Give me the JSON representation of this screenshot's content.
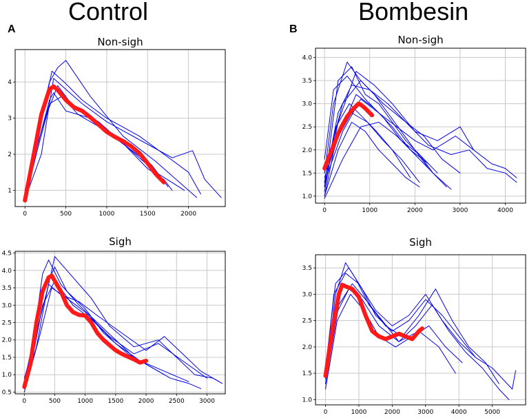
{
  "figure": {
    "left_group_title": "Control",
    "right_group_title": "Bombesin",
    "left_letter": "A",
    "right_letter": "B"
  },
  "colors": {
    "traces": "#0000ee",
    "mean": "#ff1a1a",
    "grid": "#c8c8c8"
  },
  "chart_data": [
    {
      "id": "control-nonsigh",
      "type": "line",
      "title": "Non-sigh",
      "xlim": [
        -120,
        2450
      ],
      "ylim": [
        0.55,
        4.9
      ],
      "xticks": [
        0,
        500,
        1000,
        1500,
        2000
      ],
      "yticks": [
        1,
        2,
        3,
        4
      ],
      "series": [
        {
          "name": "mean",
          "x": [
            0,
            100,
            200,
            300,
            350,
            400,
            500,
            600,
            700,
            800,
            900,
            1000,
            1100,
            1200,
            1300,
            1400,
            1500,
            1600,
            1700
          ],
          "y": [
            0.72,
            1.9,
            3.1,
            3.8,
            3.88,
            3.78,
            3.5,
            3.3,
            3.2,
            3.02,
            2.82,
            2.62,
            2.48,
            2.36,
            2.22,
            2.03,
            1.75,
            1.45,
            1.22
          ]
        },
        {
          "name": "trace-1",
          "x": [
            0,
            150,
            300,
            400,
            500,
            800,
            1200,
            1600,
            1900,
            2100
          ],
          "y": [
            0.9,
            2.6,
            4.0,
            4.4,
            4.6,
            3.6,
            2.5,
            1.8,
            1.2,
            0.8
          ]
        },
        {
          "name": "trace-2",
          "x": [
            0,
            150,
            300,
            350,
            500,
            800,
            1200,
            1500,
            1700,
            1800
          ],
          "y": [
            0.8,
            2.2,
            3.5,
            3.7,
            3.2,
            3.0,
            2.3,
            1.6,
            1.3,
            1.0
          ]
        },
        {
          "name": "trace-3",
          "x": [
            0,
            200,
            350,
            500,
            700,
            1000,
            1400,
            1800,
            2050,
            2200,
            2400
          ],
          "y": [
            0.75,
            2.0,
            4.1,
            3.8,
            3.4,
            2.9,
            2.4,
            1.9,
            2.1,
            1.3,
            0.8
          ]
        },
        {
          "name": "trace-4",
          "x": [
            0,
            150,
            280,
            400,
            600,
            900,
            1300,
            1600,
            1950
          ],
          "y": [
            0.7,
            2.1,
            3.2,
            3.9,
            3.3,
            2.9,
            2.1,
            1.5,
            1.0
          ]
        },
        {
          "name": "trace-5",
          "x": [
            0,
            180,
            330,
            480,
            700,
            1000,
            1400,
            1700,
            2000,
            2150
          ],
          "y": [
            0.9,
            2.7,
            4.3,
            4.0,
            3.5,
            3.0,
            2.5,
            2.0,
            1.5,
            0.9
          ]
        },
        {
          "name": "trace-6",
          "x": [
            0,
            120,
            300,
            450,
            650,
            950,
            1250,
            1550,
            1750
          ],
          "y": [
            1.0,
            2.0,
            3.4,
            3.6,
            3.1,
            2.7,
            2.2,
            1.7,
            1.1
          ]
        }
      ]
    },
    {
      "id": "bombesin-nonsigh",
      "type": "line",
      "title": "Non-sigh",
      "xlim": [
        -200,
        4450
      ],
      "ylim": [
        0.85,
        4.2
      ],
      "xticks": [
        0,
        1000,
        2000,
        3000,
        4000
      ],
      "yticks": [
        1.0,
        1.5,
        2.0,
        2.5,
        3.0,
        3.5,
        4.0
      ],
      "series": [
        {
          "name": "mean",
          "x": [
            0,
            100,
            200,
            300,
            400,
            500,
            600,
            700,
            750,
            800,
            900,
            1000,
            1050
          ],
          "y": [
            1.6,
            1.85,
            2.1,
            2.35,
            2.55,
            2.72,
            2.85,
            2.95,
            3.0,
            2.98,
            2.9,
            2.8,
            2.75
          ]
        },
        {
          "name": "trace-1",
          "x": [
            0,
            300,
            600,
            900,
            1200,
            1500,
            1800,
            2100,
            2400,
            2700
          ],
          "y": [
            1.2,
            3.5,
            3.8,
            3.2,
            3.0,
            2.6,
            2.2,
            1.9,
            1.5,
            1.2
          ]
        },
        {
          "name": "trace-2",
          "x": [
            0,
            300,
            600,
            900,
            1200,
            1500,
            1800,
            2100
          ],
          "y": [
            1.0,
            2.0,
            2.6,
            2.4,
            2.0,
            1.7,
            1.4,
            1.2
          ]
        },
        {
          "name": "trace-3",
          "x": [
            0,
            200,
            500,
            800,
            1100,
            1400,
            1700,
            2000,
            2300
          ],
          "y": [
            1.5,
            3.0,
            3.9,
            3.5,
            3.2,
            2.8,
            2.4,
            2.0,
            1.6
          ]
        },
        {
          "name": "trace-4",
          "x": [
            0,
            250,
            550,
            850,
            1150,
            1500,
            1900
          ],
          "y": [
            1.1,
            2.5,
            3.0,
            2.7,
            2.4,
            2.0,
            1.4
          ]
        },
        {
          "name": "trace-5",
          "x": [
            0,
            300,
            600,
            1000,
            1400,
            1800,
            2200,
            2600,
            3000
          ],
          "y": [
            1.3,
            2.8,
            3.4,
            3.3,
            3.0,
            2.6,
            2.3,
            1.8,
            1.5
          ]
        },
        {
          "name": "trace-6",
          "x": [
            0,
            400,
            800,
            1200,
            1600,
            2000,
            2400,
            2800
          ],
          "y": [
            0.95,
            1.8,
            2.5,
            2.6,
            2.3,
            1.9,
            1.5,
            1.15
          ]
        },
        {
          "name": "trace-7",
          "x": [
            0,
            200,
            500,
            900,
            1300,
            1700,
            2100,
            2500
          ],
          "y": [
            1.8,
            3.3,
            3.6,
            3.1,
            2.7,
            2.2,
            1.9,
            1.5
          ]
        },
        {
          "name": "trace-8",
          "x": [
            0,
            350,
            700,
            1100,
            1500,
            1900,
            2300
          ],
          "y": [
            1.4,
            2.4,
            3.2,
            2.9,
            2.5,
            2.0,
            1.7
          ]
        },
        {
          "name": "trace-9",
          "x": [
            0,
            300,
            700,
            1100,
            1500,
            2000,
            2500,
            3000,
            3300
          ],
          "y": [
            1.2,
            2.6,
            3.7,
            3.4,
            3.0,
            2.4,
            2.2,
            2.5,
            2.0
          ]
        },
        {
          "name": "trace-10",
          "x": [
            0,
            250,
            600,
            950,
            1300,
            1700,
            2100
          ],
          "y": [
            1.0,
            2.2,
            2.8,
            2.6,
            2.2,
            1.8,
            1.3
          ]
        },
        {
          "name": "trace-11",
          "x": [
            0,
            400,
            800,
            1300,
            1800,
            2300,
            2800,
            3200,
            3600,
            4000,
            4250
          ],
          "y": [
            1.5,
            3.0,
            3.5,
            3.0,
            2.6,
            2.1,
            1.9,
            2.0,
            1.6,
            1.5,
            1.3
          ]
        },
        {
          "name": "trace-12",
          "x": [
            0,
            400,
            800,
            1200,
            1600,
            2000,
            2400,
            2900,
            3300,
            3700,
            4000,
            4250
          ],
          "y": [
            1.3,
            2.4,
            3.1,
            2.8,
            2.5,
            2.2,
            2.0,
            2.3,
            2.0,
            1.7,
            1.6,
            1.4
          ]
        }
      ]
    },
    {
      "id": "control-sigh",
      "type": "line",
      "title": "Sigh",
      "xlim": [
        -150,
        3300
      ],
      "ylim": [
        0.45,
        4.55
      ],
      "xticks": [
        0,
        500,
        1000,
        1500,
        2000,
        2500,
        3000
      ],
      "yticks": [
        0.5,
        1.0,
        1.5,
        2.0,
        2.5,
        3.0,
        3.5,
        4.0,
        4.5
      ],
      "series": [
        {
          "name": "mean",
          "x": [
            0,
            100,
            200,
            300,
            400,
            450,
            500,
            600,
            700,
            800,
            900,
            1000,
            1100,
            1200,
            1300,
            1400,
            1500,
            1600,
            1700,
            1800,
            1900,
            2000
          ],
          "y": [
            0.65,
            1.3,
            2.5,
            3.4,
            3.8,
            3.85,
            3.7,
            3.4,
            3.0,
            2.8,
            2.72,
            2.7,
            2.5,
            2.2,
            2.0,
            1.85,
            1.7,
            1.6,
            1.52,
            1.44,
            1.35,
            1.4
          ]
        },
        {
          "name": "trace-1",
          "x": [
            0,
            150,
            300,
            400,
            600,
            900,
            1200,
            1500,
            1800,
            2100,
            2400,
            2700,
            2900
          ],
          "y": [
            0.8,
            2.0,
            3.9,
            4.3,
            3.6,
            3.0,
            2.5,
            2.0,
            1.5,
            1.2,
            0.9,
            0.75,
            0.6
          ]
        },
        {
          "name": "trace-2",
          "x": [
            0,
            200,
            350,
            500,
            800,
            1100,
            1400,
            1800,
            2200,
            2500,
            2800,
            3100,
            3250
          ],
          "y": [
            0.6,
            1.8,
            3.2,
            4.4,
            3.8,
            3.2,
            2.4,
            1.8,
            2.0,
            1.5,
            1.0,
            0.9,
            0.75
          ]
        },
        {
          "name": "trace-3",
          "x": [
            0,
            150,
            300,
            500,
            800,
            1100,
            1500,
            1900,
            2300,
            2700
          ],
          "y": [
            0.7,
            1.6,
            3.0,
            3.7,
            3.0,
            2.6,
            1.9,
            1.4,
            1.1,
            0.8
          ]
        },
        {
          "name": "trace-4",
          "x": [
            0,
            200,
            400,
            600,
            900,
            1200,
            1600,
            2000,
            2300,
            2600,
            2900,
            3200
          ],
          "y": [
            0.6,
            2.2,
            3.6,
            3.3,
            3.1,
            2.7,
            2.2,
            1.7,
            2.1,
            1.6,
            1.1,
            0.8
          ]
        },
        {
          "name": "trace-5",
          "x": [
            0,
            100,
            300,
            500,
            700,
            1000,
            1300,
            1700,
            2000,
            2300
          ],
          "y": [
            0.9,
            1.5,
            3.3,
            4.1,
            3.4,
            2.9,
            2.2,
            1.6,
            1.3,
            1.0
          ]
        },
        {
          "name": "trace-6",
          "x": [
            0,
            250,
            450,
            700,
            1000,
            1400,
            1800,
            2200,
            2600,
            3000
          ],
          "y": [
            0.5,
            2.1,
            3.5,
            3.2,
            2.8,
            2.1,
            1.6,
            1.9,
            1.4,
            0.9
          ]
        }
      ]
    },
    {
      "id": "bombesin-sigh",
      "type": "line",
      "title": "Sigh",
      "xlim": [
        -300,
        6000
      ],
      "ylim": [
        0.9,
        3.75
      ],
      "xticks": [
        0,
        1000,
        2000,
        3000,
        4000,
        5000
      ],
      "yticks": [
        1.0,
        1.5,
        2.0,
        2.5,
        3.0,
        3.5
      ],
      "series": [
        {
          "name": "mean",
          "x": [
            0,
            200,
            400,
            500,
            600,
            800,
            1000,
            1200,
            1400,
            1600,
            1800,
            2000,
            2200,
            2400,
            2600,
            2800,
            2900
          ],
          "y": [
            1.45,
            2.3,
            3.0,
            3.18,
            3.15,
            3.1,
            2.95,
            2.6,
            2.3,
            2.2,
            2.15,
            2.2,
            2.25,
            2.2,
            2.15,
            2.3,
            2.35
          ]
        },
        {
          "name": "trace-1",
          "x": [
            0,
            300,
            600,
            900,
            1300,
            1800,
            2300,
            2800,
            3300,
            3800,
            4300,
            4800,
            5200
          ],
          "y": [
            1.4,
            3.0,
            3.6,
            3.3,
            2.8,
            2.4,
            2.2,
            2.6,
            3.1,
            2.5,
            2.0,
            1.7,
            1.3
          ]
        },
        {
          "name": "trace-2",
          "x": [
            0,
            400,
            800,
            1200,
            1700,
            2200,
            2700,
            3200,
            3700,
            4200,
            4700,
            5200,
            5500
          ],
          "y": [
            1.3,
            2.8,
            3.2,
            2.9,
            2.5,
            2.1,
            2.4,
            2.8,
            2.3,
            1.9,
            1.6,
            1.2,
            1.0
          ]
        },
        {
          "name": "trace-3",
          "x": [
            0,
            300,
            700,
            1100,
            1500,
            2000,
            2500,
            3000,
            3500,
            4000,
            4500,
            5000,
            5600,
            5700
          ],
          "y": [
            1.6,
            3.2,
            3.5,
            3.1,
            2.6,
            2.3,
            2.5,
            2.9,
            2.6,
            2.2,
            1.8,
            1.6,
            1.2,
            1.55
          ]
        },
        {
          "name": "trace-4",
          "x": [
            0,
            350,
            750,
            1150,
            1600,
            2100,
            2600,
            3100,
            3600,
            4100
          ],
          "y": [
            1.2,
            2.5,
            3.0,
            2.7,
            2.2,
            2.0,
            2.2,
            2.4,
            2.0,
            1.7
          ]
        },
        {
          "name": "trace-5",
          "x": [
            0,
            250,
            600,
            1000,
            1500,
            2000,
            2500,
            3000,
            3500,
            4000,
            4500
          ],
          "y": [
            1.5,
            3.0,
            3.4,
            3.2,
            2.7,
            2.4,
            2.6,
            3.0,
            2.5,
            2.1,
            1.8
          ]
        },
        {
          "name": "trace-6",
          "x": [
            0,
            300,
            700,
            1100,
            1600,
            2200,
            2800,
            3400,
            3900
          ],
          "y": [
            1.3,
            2.6,
            3.1,
            2.9,
            2.4,
            2.1,
            2.3,
            2.0,
            1.5
          ]
        }
      ]
    }
  ]
}
